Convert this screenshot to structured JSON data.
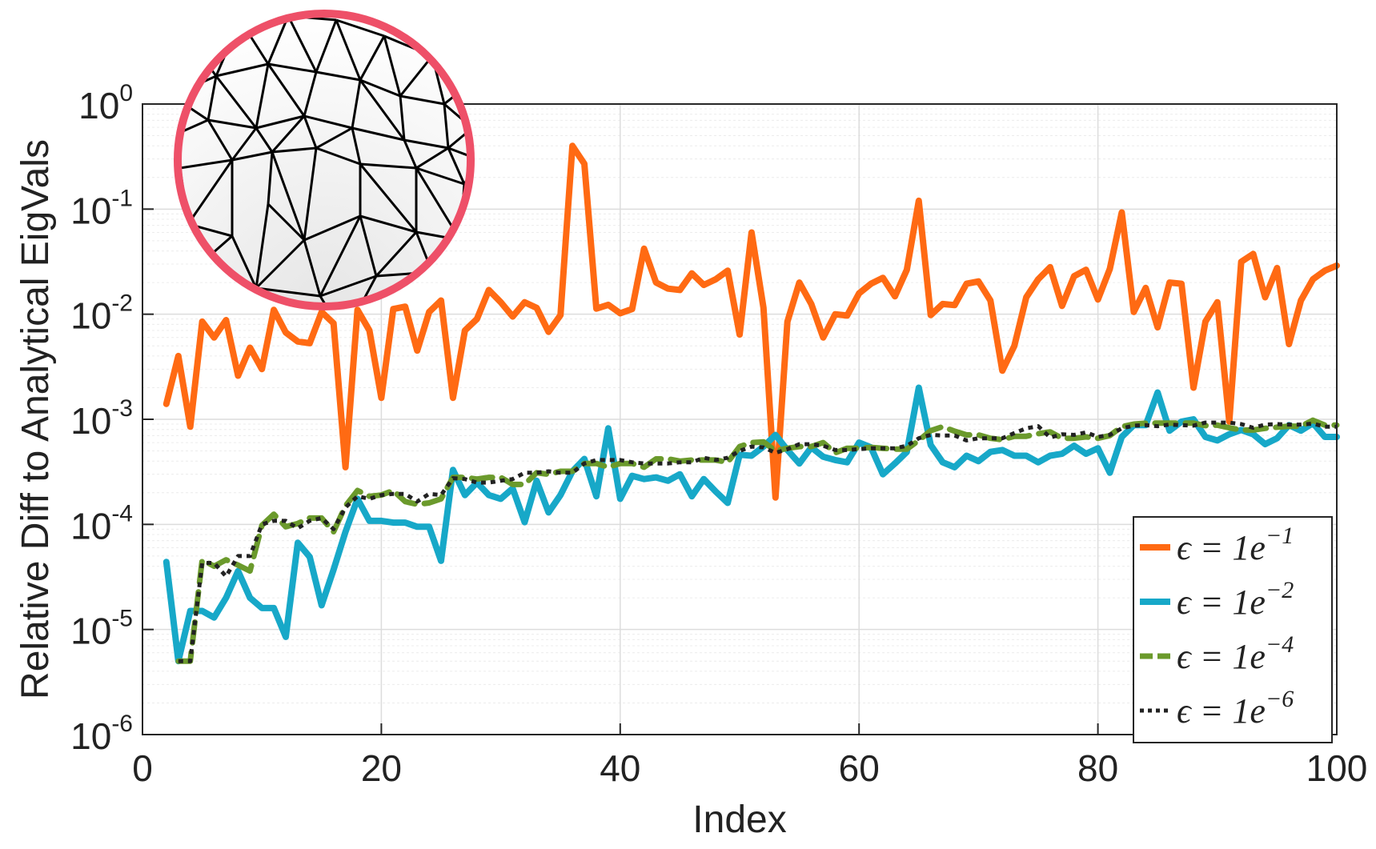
{
  "chart_data": {
    "type": "line",
    "title": "",
    "xlabel": "Index",
    "ylabel": "Relative Diff to Analytical EigVals",
    "xlim": [
      0,
      100
    ],
    "ylim_exponents": [
      -6,
      0
    ],
    "yscale": "log",
    "x_ticks": [
      "0",
      "20",
      "40",
      "60",
      "80",
      "100"
    ],
    "y_ticks": [
      {
        "base": "10",
        "exp": "0"
      },
      {
        "base": "10",
        "exp": "-1"
      },
      {
        "base": "10",
        "exp": "-2"
      },
      {
        "base": "10",
        "exp": "-3"
      },
      {
        "base": "10",
        "exp": "-4"
      },
      {
        "base": "10",
        "exp": "-5"
      },
      {
        "base": "10",
        "exp": "-6"
      }
    ],
    "grid": true,
    "legend_position": "bottom-right",
    "x": [
      2,
      3,
      4,
      5,
      6,
      7,
      8,
      9,
      10,
      11,
      12,
      13,
      14,
      15,
      16,
      17,
      18,
      19,
      20,
      21,
      22,
      23,
      24,
      25,
      26,
      27,
      28,
      29,
      30,
      31,
      32,
      33,
      34,
      35,
      36,
      37,
      38,
      39,
      40,
      41,
      42,
      43,
      44,
      45,
      46,
      47,
      48,
      49,
      50,
      51,
      52,
      53,
      54,
      55,
      56,
      57,
      58,
      59,
      60,
      61,
      62,
      63,
      64,
      65,
      66,
      67,
      68,
      69,
      70,
      71,
      72,
      73,
      74,
      75,
      76,
      77,
      78,
      79,
      80,
      81,
      82,
      83,
      84,
      85,
      86,
      87,
      88,
      89,
      90,
      91,
      92,
      93,
      94,
      95,
      96,
      97,
      98,
      99,
      100
    ],
    "series": [
      {
        "name": "ε = 1e^−1",
        "label_prefix": "ϵ = 1e",
        "label_exp": "−1",
        "color": "#ff6a13",
        "style": "solid",
        "values": [
          0.0014,
          0.004,
          0.00085,
          0.0085,
          0.006,
          0.0088,
          0.0026,
          0.0048,
          0.003,
          0.011,
          0.0067,
          0.0055,
          0.0053,
          0.0105,
          0.0082,
          0.00035,
          0.011,
          0.007,
          0.0016,
          0.0112,
          0.0118,
          0.0045,
          0.0105,
          0.0135,
          0.0016,
          0.007,
          0.009,
          0.017,
          0.013,
          0.0095,
          0.013,
          0.0115,
          0.0068,
          0.0098,
          0.4,
          0.27,
          0.0113,
          0.0123,
          0.0102,
          0.0112,
          0.042,
          0.02,
          0.0175,
          0.017,
          0.0245,
          0.019,
          0.0215,
          0.026,
          0.0064,
          0.06,
          0.0115,
          0.00018,
          0.0085,
          0.02,
          0.0125,
          0.006,
          0.01,
          0.0097,
          0.0158,
          0.0195,
          0.0222,
          0.0148,
          0.0265,
          0.12,
          0.0098,
          0.0125,
          0.0122,
          0.0195,
          0.0205,
          0.0135,
          0.0029,
          0.005,
          0.0145,
          0.0215,
          0.028,
          0.012,
          0.023,
          0.0265,
          0.0138,
          0.027,
          0.093,
          0.0105,
          0.0178,
          0.0075,
          0.02,
          0.0195,
          0.002,
          0.0085,
          0.013,
          0.00095,
          0.0315,
          0.0375,
          0.0145,
          0.0275,
          0.0052,
          0.0135,
          0.0215,
          0.026,
          0.029
        ]
      },
      {
        "name": "ε = 1e^−2",
        "label_prefix": "ϵ = 1e",
        "label_exp": "−2",
        "color": "#17a8c8",
        "style": "solid",
        "values": [
          4.4e-05,
          5e-06,
          1.5e-05,
          1.5e-05,
          1.3e-05,
          2e-05,
          3.6e-05,
          2e-05,
          1.6e-05,
          1.6e-05,
          8.5e-06,
          6.7e-05,
          4.9e-05,
          1.7e-05,
          3.7e-05,
          8.5e-05,
          0.000175,
          0.000108,
          0.000108,
          0.000104,
          0.000104,
          9.5e-05,
          9.5e-05,
          4.5e-05,
          0.00033,
          0.00019,
          0.00025,
          0.00019,
          0.000175,
          0.00022,
          0.000105,
          0.00026,
          0.00013,
          0.00019,
          0.00032,
          0.00042,
          0.000185,
          0.00082,
          0.000175,
          0.00029,
          0.00027,
          0.00028,
          0.00026,
          0.0003,
          0.000185,
          0.00027,
          0.000205,
          0.00016,
          0.00046,
          0.00045,
          0.00055,
          0.00071,
          0.00051,
          0.00038,
          0.00054,
          0.00044,
          0.00041,
          0.00039,
          0.0006,
          0.00054,
          0.0003,
          0.00038,
          0.00049,
          0.002,
          0.00057,
          0.00039,
          0.00035,
          0.00045,
          0.0004,
          0.00049,
          0.00051,
          0.00045,
          0.00045,
          0.00039,
          0.00045,
          0.00047,
          0.00056,
          0.00047,
          0.00053,
          0.00031,
          0.00068,
          0.00088,
          0.00088,
          0.0018,
          0.00078,
          0.00095,
          0.001,
          0.00068,
          0.00063,
          0.00072,
          0.00079,
          0.00072,
          0.00058,
          0.00066,
          0.00088,
          0.00078,
          0.00092,
          0.00068,
          0.00068
        ]
      },
      {
        "name": "ε = 1e^−4",
        "label_prefix": "ϵ = 1e",
        "label_exp": "−4",
        "color": "#6b9a2c",
        "style": "dashed",
        "values": [
          null,
          5e-06,
          5e-06,
          4.6e-05,
          4e-05,
          4.6e-05,
          4.1e-05,
          3.6e-05,
          9.8e-05,
          0.000125,
          9.5e-05,
          0.000102,
          0.000115,
          0.000115,
          8.5e-05,
          0.00015,
          0.00021,
          0.000185,
          0.00019,
          0.00021,
          0.000165,
          0.000155,
          0.00016,
          0.000175,
          0.00028,
          0.00028,
          0.00027,
          0.00028,
          0.00028,
          0.00024,
          0.00024,
          0.00031,
          0.0003,
          0.00032,
          0.00032,
          0.00038,
          0.00038,
          0.00035,
          0.00038,
          0.00038,
          0.00035,
          0.00042,
          0.00042,
          0.0004,
          0.00041,
          0.00041,
          0.00041,
          0.00039,
          0.00055,
          0.0006,
          0.00061,
          0.0005,
          0.00053,
          0.00055,
          0.00055,
          0.0006,
          0.00048,
          0.00053,
          0.00053,
          0.00054,
          0.00053,
          0.00052,
          0.00052,
          0.00063,
          0.00078,
          0.00085,
          0.00077,
          0.00071,
          0.00071,
          0.00066,
          0.00064,
          0.00069,
          0.00069,
          0.00073,
          0.00076,
          0.00066,
          0.00066,
          0.00068,
          0.00066,
          0.0007,
          0.00085,
          0.0009,
          0.00092,
          0.00092,
          0.00092,
          0.00092,
          0.00092,
          0.00087,
          0.00088,
          0.00083,
          0.00079,
          0.00079,
          0.00082,
          0.00084,
          0.00086,
          0.00086,
          0.00098,
          0.00088,
          0.00088
        ]
      },
      {
        "name": "ε = 1e^−6",
        "label_prefix": "ϵ = 1e",
        "label_exp": "−6",
        "color": "#222222",
        "style": "dotted",
        "values": [
          null,
          5e-06,
          5e-06,
          4.3e-05,
          4.3e-05,
          3.2e-05,
          5e-05,
          5e-05,
          0.0001,
          0.000108,
          0.000108,
          9.2e-05,
          0.000108,
          0.000115,
          9e-05,
          0.000145,
          0.000185,
          0.000175,
          0.00019,
          0.000195,
          0.000195,
          0.000165,
          0.000195,
          0.00019,
          0.000275,
          0.00027,
          0.00025,
          0.00025,
          0.00026,
          0.00027,
          0.00031,
          0.00031,
          0.00032,
          0.00031,
          0.00031,
          0.00038,
          0.00041,
          0.00041,
          0.00041,
          0.00039,
          0.00038,
          0.00038,
          0.00038,
          0.00039,
          0.00039,
          0.00043,
          0.00041,
          0.00043,
          0.0005,
          0.00055,
          0.00054,
          0.00048,
          0.00052,
          0.00058,
          0.00058,
          0.00056,
          0.00051,
          0.00051,
          0.00052,
          0.00053,
          0.00053,
          0.00053,
          0.00056,
          0.00066,
          0.00071,
          0.0007,
          0.0007,
          0.00063,
          0.00066,
          0.00066,
          0.00066,
          0.00074,
          0.00082,
          0.00086,
          0.00067,
          0.00072,
          0.00071,
          0.00075,
          0.00068,
          0.00071,
          0.00082,
          0.00087,
          0.00088,
          0.00086,
          0.00089,
          0.00088,
          0.00087,
          0.00093,
          0.00093,
          0.00093,
          0.0009,
          0.00083,
          0.00089,
          0.0009,
          0.00089,
          0.00089,
          0.00091,
          0.00085,
          0.00085
        ]
      }
    ]
  }
}
